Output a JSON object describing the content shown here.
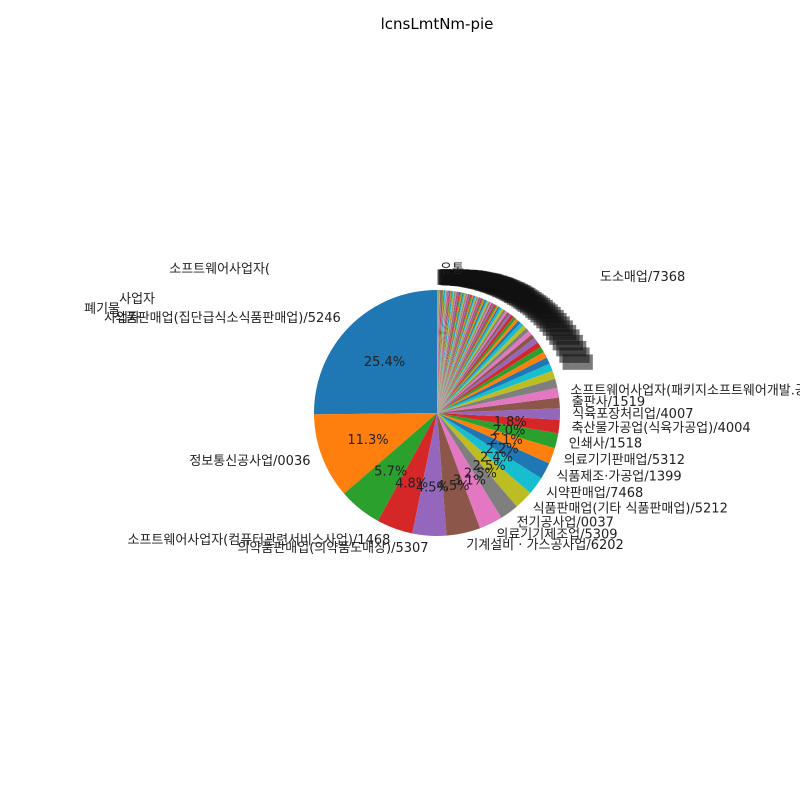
{
  "chart_data": {
    "type": "pie",
    "title": "lcnsLmtNm-pie",
    "start_angle_deg": 90,
    "direction": "counterclockwise",
    "slices": [
      {
        "label": "식품판매업(집단급식소식품판매업)/5246",
        "value": 25.4,
        "pct_label": "25.4%",
        "color": "#1f77b4"
      },
      {
        "label": "정보통신공사업/0036",
        "value": 11.3,
        "pct_label": "11.3%",
        "color": "#ff7f0e"
      },
      {
        "label": "",
        "value": 5.7,
        "pct_label": "5.7%",
        "color": "#2ca02c"
      },
      {
        "label": "소프트웨어사업자(컴퓨터관련서비스사업)/1468",
        "value": 4.8,
        "pct_label": "4.8%",
        "color": "#d62728"
      },
      {
        "label": "의약품판매업(의약품도매상)/5307",
        "value": 4.5,
        "pct_label": "4.5%",
        "color": "#9467bd"
      },
      {
        "label": "기계설비 · 가스공사업/6202",
        "value": 4.5,
        "pct_label": "4.5%",
        "color": "#8c564b"
      },
      {
        "label": "의료기기제조업/5309",
        "value": 3.1,
        "pct_label": "3.1%",
        "color": "#e377c2"
      },
      {
        "label": "전기공사업/0037",
        "value": 2.5,
        "pct_label": "2.5%",
        "color": "#7f7f7f"
      },
      {
        "label": "식품판매업(기타 식품판매업)/5212",
        "value": 2.5,
        "pct_label": "2.5%",
        "color": "#bcbd22"
      },
      {
        "label": "시약판매업/7468",
        "value": 2.4,
        "pct_label": "2.4%",
        "color": "#17becf"
      },
      {
        "label": "식품제조·가공업/1399",
        "value": 2.2,
        "pct_label": "2.2%",
        "color": "#1f77b4"
      },
      {
        "label": "의료기기판매업/5312",
        "value": 2.1,
        "pct_label": "2.1%",
        "color": "#ff7f0e"
      },
      {
        "label": "인쇄사/1518",
        "value": 2.0,
        "pct_label": "2.0%",
        "color": "#2ca02c"
      },
      {
        "label": "축산물가공업(식육가공업)/4004",
        "value": 1.8,
        "pct_label": "1.8%",
        "color": "#d62728"
      },
      {
        "label": "식육포장처리업/4007",
        "value": 1.5,
        "pct_label": "",
        "color": "#9467bd"
      },
      {
        "label": "출판사/1519",
        "value": 1.4,
        "pct_label": "",
        "color": "#8c564b"
      },
      {
        "label": "소프트웨어사업자(패키지소프트웨어개발.공급사업)/4991",
        "value": 1.3,
        "pct_label": "",
        "color": "#e377c2"
      },
      {
        "label": "",
        "value": 1.2,
        "pct_label": "",
        "color": "#7f7f7f"
      },
      {
        "label": "",
        "value": 1.1,
        "pct_label": "",
        "color": "#bcbd22"
      },
      {
        "label": "",
        "value": 1.0,
        "pct_label": "",
        "color": "#17becf"
      },
      {
        "label": "",
        "value": 0.9,
        "pct_label": "",
        "color": "#1f77b4"
      },
      {
        "label": "",
        "value": 0.8,
        "pct_label": "",
        "color": "#ff7f0e"
      },
      {
        "label": "",
        "value": 0.8,
        "pct_label": "",
        "color": "#2ca02c"
      },
      {
        "label": "",
        "value": 0.7,
        "pct_label": "",
        "color": "#d62728"
      },
      {
        "label": "",
        "value": 0.7,
        "pct_label": "",
        "color": "#9467bd"
      },
      {
        "label": "",
        "value": 0.6,
        "pct_label": "",
        "color": "#8c564b"
      },
      {
        "label": "",
        "value": 0.6,
        "pct_label": "",
        "color": "#e377c2"
      },
      {
        "label": "",
        "value": 0.5,
        "pct_label": "",
        "color": "#7f7f7f"
      },
      {
        "label": "",
        "value": 0.5,
        "pct_label": "",
        "color": "#bcbd22"
      },
      {
        "label": "",
        "value": 0.5,
        "pct_label": "",
        "color": "#17becf"
      },
      {
        "label": "",
        "value": 0.4,
        "pct_label": "",
        "color": "#1f77b4"
      },
      {
        "label": "",
        "value": 0.4,
        "pct_label": "",
        "color": "#ff7f0e"
      },
      {
        "label": "",
        "value": 0.4,
        "pct_label": "",
        "color": "#2ca02c"
      },
      {
        "label": "",
        "value": 0.4,
        "pct_label": "",
        "color": "#d62728"
      },
      {
        "label": "",
        "value": 0.3,
        "pct_label": "",
        "color": "#9467bd"
      },
      {
        "label": "",
        "value": 0.3,
        "pct_label": "",
        "color": "#8c564b"
      },
      {
        "label": "",
        "value": 0.3,
        "pct_label": "",
        "color": "#e377c2"
      },
      {
        "label": "",
        "value": 0.3,
        "pct_label": "",
        "color": "#7f7f7f"
      },
      {
        "label": "",
        "value": 0.3,
        "pct_label": "",
        "color": "#bcbd22"
      },
      {
        "label": "",
        "value": 0.3,
        "pct_label": "",
        "color": "#17becf"
      },
      {
        "label": "",
        "value": 0.2,
        "pct_label": "",
        "color": "#1f77b4"
      },
      {
        "label": "",
        "value": 0.2,
        "pct_label": "",
        "color": "#ff7f0e"
      },
      {
        "label": "",
        "value": 0.2,
        "pct_label": "",
        "color": "#2ca02c"
      },
      {
        "label": "",
        "value": 0.2,
        "pct_label": "",
        "color": "#d62728"
      },
      {
        "label": "",
        "value": 0.2,
        "pct_label": "",
        "color": "#9467bd"
      },
      {
        "label": "",
        "value": 0.2,
        "pct_label": "",
        "color": "#8c564b"
      },
      {
        "label": "",
        "value": 0.2,
        "pct_label": "",
        "color": "#e377c2"
      },
      {
        "label": "",
        "value": 0.2,
        "pct_label": "",
        "color": "#7f7f7f"
      },
      {
        "label": "",
        "value": 0.2,
        "pct_label": "",
        "color": "#bcbd22"
      },
      {
        "label": "",
        "value": 0.2,
        "pct_label": "",
        "color": "#17becf"
      },
      {
        "label": "",
        "value": 0.2,
        "pct_label": "",
        "color": "#1f77b4"
      },
      {
        "label": "",
        "value": 0.2,
        "pct_label": "",
        "color": "#ff7f0e"
      },
      {
        "label": "",
        "value": 0.15,
        "pct_label": "",
        "color": "#2ca02c"
      },
      {
        "label": "",
        "value": 0.15,
        "pct_label": "",
        "color": "#d62728"
      },
      {
        "label": "",
        "value": 0.15,
        "pct_label": "",
        "color": "#9467bd"
      },
      {
        "label": "",
        "value": 0.15,
        "pct_label": "",
        "color": "#8c564b"
      },
      {
        "label": "",
        "value": 0.15,
        "pct_label": "",
        "color": "#e377c2"
      },
      {
        "label": "",
        "value": 0.15,
        "pct_label": "",
        "color": "#7f7f7f"
      },
      {
        "label": "",
        "value": 0.15,
        "pct_label": "",
        "color": "#bcbd22"
      },
      {
        "label": "",
        "value": 0.15,
        "pct_label": "",
        "color": "#17becf"
      },
      {
        "label": "",
        "value": 0.15,
        "pct_label": "",
        "color": "#1f77b4"
      },
      {
        "label": "",
        "value": 0.15,
        "pct_label": "",
        "color": "#ff7f0e"
      },
      {
        "label": "",
        "value": 0.15,
        "pct_label": "",
        "color": "#2ca02c"
      },
      {
        "label": "",
        "value": 0.15,
        "pct_label": "",
        "color": "#d62728"
      },
      {
        "label": "",
        "value": 0.15,
        "pct_label": "",
        "color": "#9467bd"
      },
      {
        "label": "",
        "value": 0.15,
        "pct_label": "",
        "color": "#8c564b"
      },
      {
        "label": "",
        "value": 0.15,
        "pct_label": "",
        "color": "#e377c2"
      },
      {
        "label": "",
        "value": 0.15,
        "pct_label": "",
        "color": "#7f7f7f"
      },
      {
        "label": "",
        "value": 0.15,
        "pct_label": "",
        "color": "#bcbd22"
      },
      {
        "label": "",
        "value": 0.15,
        "pct_label": "",
        "color": "#17becf"
      },
      {
        "label": "",
        "value": 0.15,
        "pct_label": "",
        "color": "#1f77b4"
      },
      {
        "label": "",
        "value": 0.15,
        "pct_label": "",
        "color": "#ff7f0e"
      },
      {
        "label": "",
        "value": 0.15,
        "pct_label": "",
        "color": "#2ca02c"
      },
      {
        "label": "",
        "value": 0.15,
        "pct_label": "",
        "color": "#d62728"
      },
      {
        "label": "",
        "value": 0.15,
        "pct_label": "",
        "color": "#9467bd"
      },
      {
        "label": "",
        "value": 0.15,
        "pct_label": "",
        "color": "#8c564b"
      },
      {
        "label": "",
        "value": 0.15,
        "pct_label": "",
        "color": "#e377c2"
      },
      {
        "label": "",
        "value": 0.15,
        "pct_label": "",
        "color": "#7f7f7f"
      },
      {
        "label": "",
        "value": 0.15,
        "pct_label": "",
        "color": "#bcbd22"
      },
      {
        "label": "",
        "value": 0.15,
        "pct_label": "",
        "color": "#17becf"
      },
      {
        "label": "",
        "value": 0.1,
        "pct_label": "",
        "color": "#1f77b4"
      },
      {
        "label": "",
        "value": 0.1,
        "pct_label": "",
        "color": "#ff7f0e"
      },
      {
        "label": "",
        "value": 0.1,
        "pct_label": "",
        "color": "#2ca02c"
      },
      {
        "label": "",
        "value": 0.1,
        "pct_label": "",
        "color": "#d62728"
      },
      {
        "label": "",
        "value": 0.1,
        "pct_label": "",
        "color": "#9467bd"
      },
      {
        "label": "",
        "value": 0.1,
        "pct_label": "",
        "color": "#8c564b"
      },
      {
        "label": "",
        "value": 0.1,
        "pct_label": "",
        "color": "#e377c2"
      },
      {
        "label": "",
        "value": 0.1,
        "pct_label": "",
        "color": "#7f7f7f"
      },
      {
        "label": "",
        "value": 0.1,
        "pct_label": "",
        "color": "#bcbd22"
      },
      {
        "label": "",
        "value": 0.1,
        "pct_label": "",
        "color": "#17becf"
      },
      {
        "label": "",
        "value": 0.1,
        "pct_label": "",
        "color": "#1f77b4"
      },
      {
        "label": "",
        "value": 0.1,
        "pct_label": "",
        "color": "#ff7f0e"
      },
      {
        "label": "",
        "value": 0.1,
        "pct_label": "",
        "color": "#2ca02c"
      },
      {
        "label": "",
        "value": 0.1,
        "pct_label": "",
        "color": "#d62728"
      },
      {
        "label": "",
        "value": 0.1,
        "pct_label": "",
        "color": "#9467bd"
      },
      {
        "label": "",
        "value": 0.1,
        "pct_label": "",
        "color": "#8c564b"
      },
      {
        "label": "",
        "value": 0.1,
        "pct_label": "",
        "color": "#e377c2"
      },
      {
        "label": "",
        "value": 0.1,
        "pct_label": "",
        "color": "#7f7f7f"
      },
      {
        "label": "",
        "value": 0.1,
        "pct_label": "",
        "color": "#bcbd22"
      },
      {
        "label": "",
        "value": 0.1,
        "pct_label": "",
        "color": "#17becf"
      }
    ],
    "overlapping_labels_text": [
      "소프트웨어사업자(",
      "폐기물",
      "사업자",
      "사업자",
      "유통",
      "도소매업/7368"
    ]
  }
}
